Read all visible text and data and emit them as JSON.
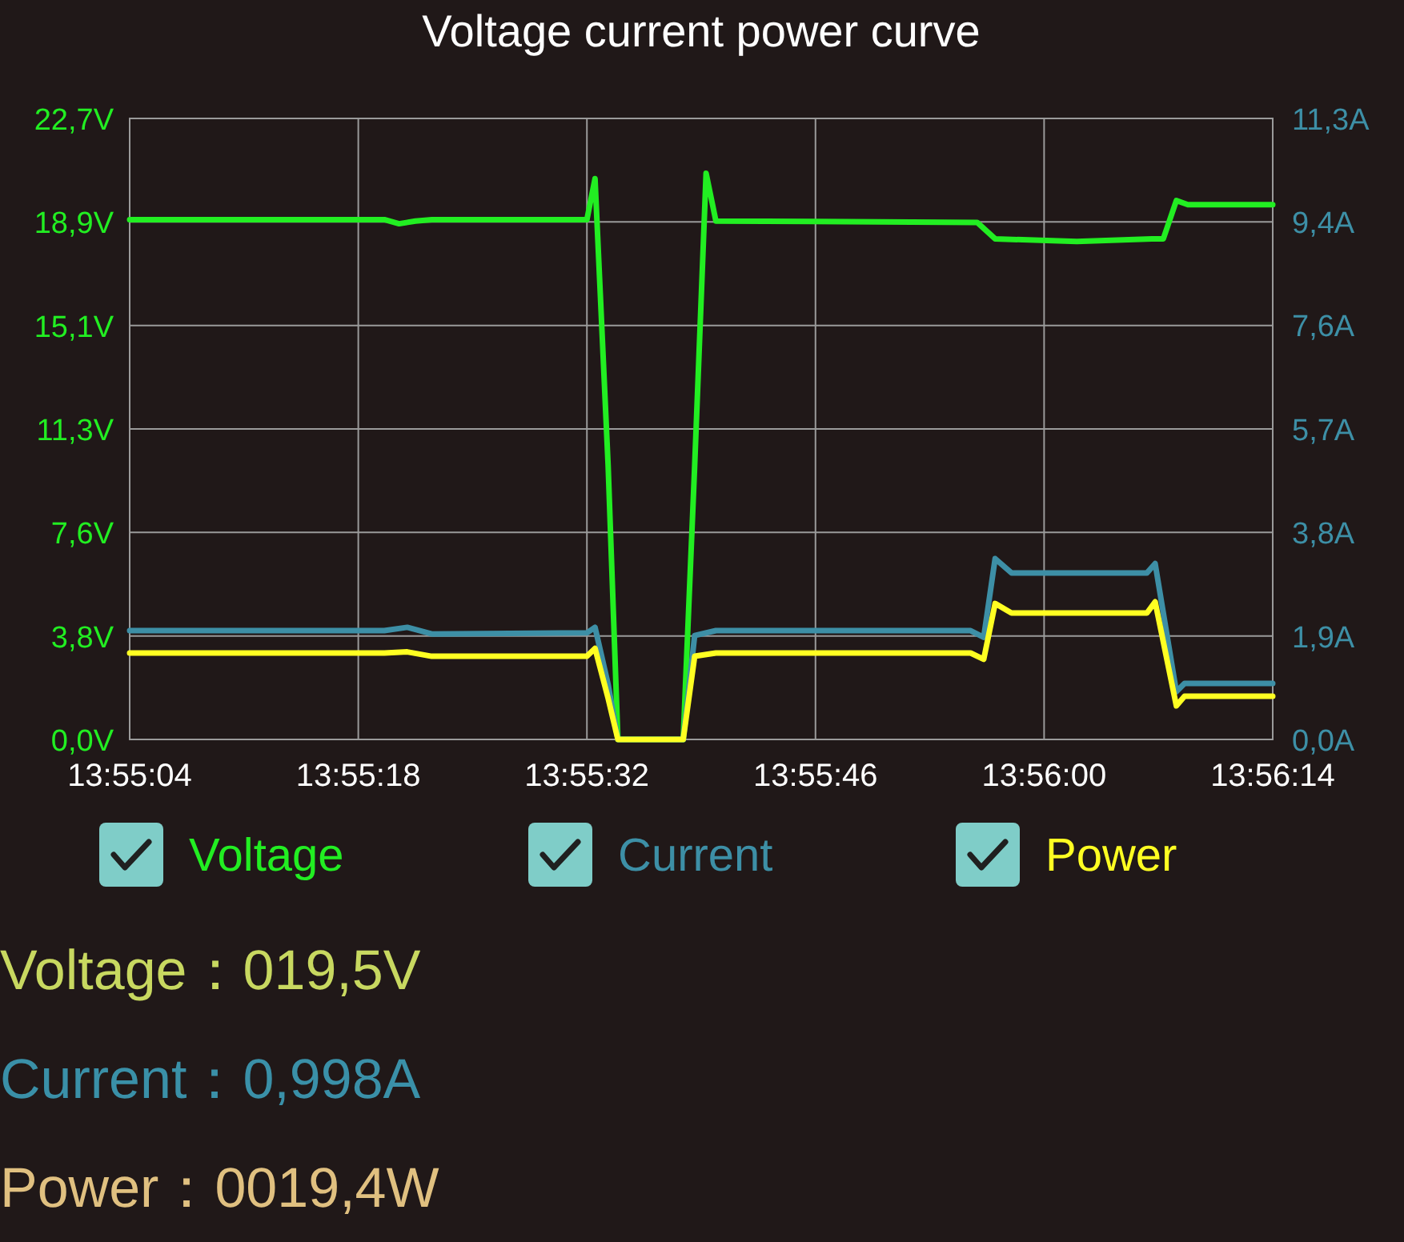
{
  "chart_data": {
    "type": "line",
    "title": "Voltage current power curve",
    "x": [
      13.917778,
      13.922111,
      13.922361,
      13.922639,
      13.922917,
      13.925556,
      13.925694,
      13.925917,
      13.926083,
      13.927194,
      13.927389,
      13.927583,
      13.92775,
      13.932194,
      13.9325,
      13.933889,
      13.935167,
      13.935361,
      13.935583,
      13.935778,
      13.937222
    ],
    "series": [
      {
        "name": "Voltage",
        "color": "#22ee22",
        "values": [
          19.0,
          19.0,
          18.85,
          18.95,
          19.0,
          19.0,
          20.5,
          10.0,
          0,
          0,
          10.0,
          20.7,
          18.95,
          18.9,
          18.3,
          18.2,
          18.3,
          18.3,
          19.7,
          19.55,
          19.55
        ]
      },
      {
        "name": "Current",
        "color": "#3d8fa6",
        "axis": "y2",
        "x": [
          13.917778,
          13.922111,
          13.9225,
          13.922917,
          13.925556,
          13.925694,
          13.925917,
          13.926083,
          13.927194,
          13.927389,
          13.92775,
          13.932083,
          13.932306,
          13.9325,
          13.932778,
          13.935083,
          13.935222,
          13.935583,
          13.935722,
          13.935972,
          13.937222
        ],
        "values": [
          1.98,
          1.98,
          2.04,
          1.92,
          1.94,
          2.04,
          1.0,
          0,
          0,
          1.89,
          1.98,
          1.98,
          1.86,
          3.29,
          3.03,
          3.03,
          3.2,
          0.87,
          1.02,
          1.02,
          1.02
        ]
      },
      {
        "name": "Power",
        "color": "#ffff22",
        "x": [
          13.917778,
          13.922111,
          13.9225,
          13.922917,
          13.925556,
          13.925694,
          13.925917,
          13.926083,
          13.927194,
          13.927389,
          13.92775,
          13.932083,
          13.932306,
          13.9325,
          13.932778,
          13.935083,
          13.935222,
          13.935583,
          13.935722,
          13.935972,
          13.937222
        ],
        "values": [
          3.16,
          3.16,
          3.2,
          3.04,
          3.04,
          3.33,
          1.5,
          0,
          0,
          3.04,
          3.16,
          3.16,
          2.93,
          4.97,
          4.62,
          4.62,
          5.03,
          1.23,
          1.58,
          1.58,
          1.58
        ]
      }
    ],
    "xlim": [
      13.917778,
      13.937222
    ],
    "xticks": [
      {
        "value": 13.917778,
        "label": "13:55:04"
      },
      {
        "value": 13.921667,
        "label": "13:55:18"
      },
      {
        "value": 13.925556,
        "label": "13:55:32"
      },
      {
        "value": 13.929444,
        "label": "13:55:46"
      },
      {
        "value": 13.933333,
        "label": "13:56:00"
      },
      {
        "value": 13.937222,
        "label": "13:56:14"
      }
    ],
    "ylim": [
      0,
      22.7
    ],
    "yticks": [
      {
        "value": 0,
        "label": "0,0V"
      },
      {
        "value": 3.78,
        "label": "3,8V"
      },
      {
        "value": 7.57,
        "label": "7,6V"
      },
      {
        "value": 11.35,
        "label": "11,3V"
      },
      {
        "value": 15.13,
        "label": "15,1V"
      },
      {
        "value": 18.92,
        "label": "18,9V"
      },
      {
        "value": 22.7,
        "label": "22,7V"
      }
    ],
    "y2lim": [
      0,
      11.3
    ],
    "y2ticks": [
      {
        "value": 0,
        "label": "0,0A"
      },
      {
        "value": 1.88,
        "label": "1,9A"
      },
      {
        "value": 3.77,
        "label": "3,8A"
      },
      {
        "value": 5.65,
        "label": "5,7A"
      },
      {
        "value": 7.55,
        "label": "7,6A"
      },
      {
        "value": 9.42,
        "label": "9,4A"
      },
      {
        "value": 11.3,
        "label": "11,3A"
      }
    ],
    "grid": true,
    "legend": "bottom",
    "marker": "none",
    "line_style": "solid",
    "annotations": [
      "Voltage：019,5V",
      "Current：0,998A",
      "Power：0019,4W"
    ]
  }
}
